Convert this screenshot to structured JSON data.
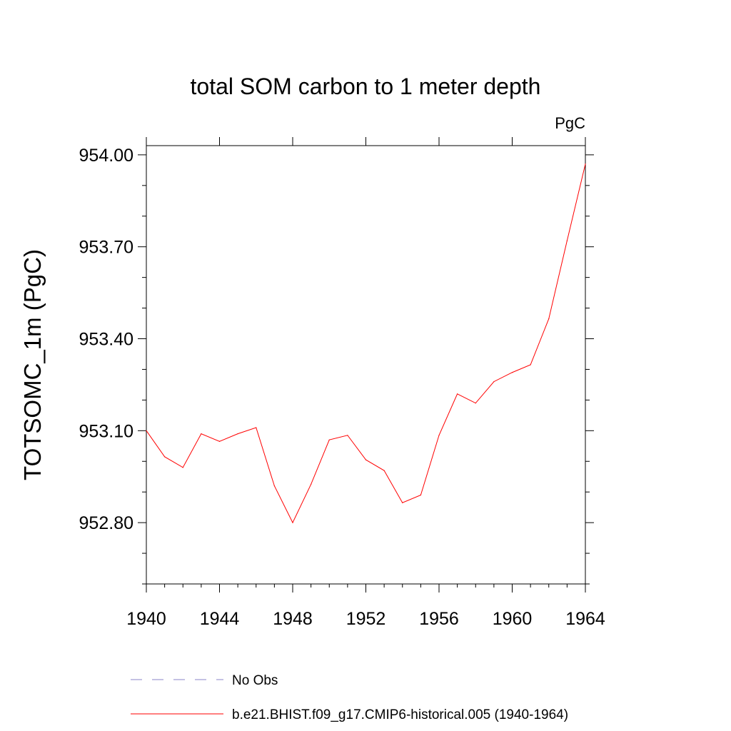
{
  "chart_data": {
    "type": "line",
    "title": "total SOM carbon to 1 meter depth",
    "units": "PgC",
    "ylabel": "TOTSOMC_1m  (PgC)",
    "xlabel": "",
    "xlim": [
      1940,
      1964
    ],
    "ylim": [
      952.6,
      954.03
    ],
    "xticks": [
      1940,
      1944,
      1948,
      1952,
      1956,
      1960,
      1964
    ],
    "xtick_labels": [
      "1940",
      "1944",
      "1948",
      "1952",
      "1956",
      "1960",
      "1964"
    ],
    "yticks": [
      952.8,
      953.1,
      953.4,
      953.7,
      954.0
    ],
    "ytick_labels": [
      "952.80",
      "953.10",
      "953.40",
      "953.70",
      "954.00"
    ],
    "x": [
      1940,
      1941,
      1942,
      1943,
      1944,
      1945,
      1946,
      1947,
      1948,
      1949,
      1950,
      1951,
      1952,
      1953,
      1954,
      1955,
      1956,
      1957,
      1958,
      1959,
      1960,
      1961,
      1962,
      1963,
      1964
    ],
    "series": [
      {
        "name": "b.e21.BHIST.f09_g17.CMIP6-historical.005 (1940-1964)",
        "color": "#ff0000",
        "style": "solid",
        "values": [
          953.1,
          953.015,
          952.98,
          953.09,
          953.065,
          953.09,
          953.11,
          952.92,
          952.8,
          952.925,
          953.07,
          953.085,
          953.005,
          952.97,
          952.865,
          952.89,
          953.085,
          953.22,
          953.19,
          953.26,
          953.29,
          953.315,
          953.465,
          953.72,
          953.97
        ]
      }
    ],
    "legend": [
      {
        "label": "No Obs",
        "color": "#8a84c8",
        "style": "dashed"
      },
      {
        "label": "b.e21.BHIST.f09_g17.CMIP6-historical.005 (1940-1964)",
        "color": "#ff0000",
        "style": "solid"
      }
    ],
    "legend_position": "bottom"
  }
}
